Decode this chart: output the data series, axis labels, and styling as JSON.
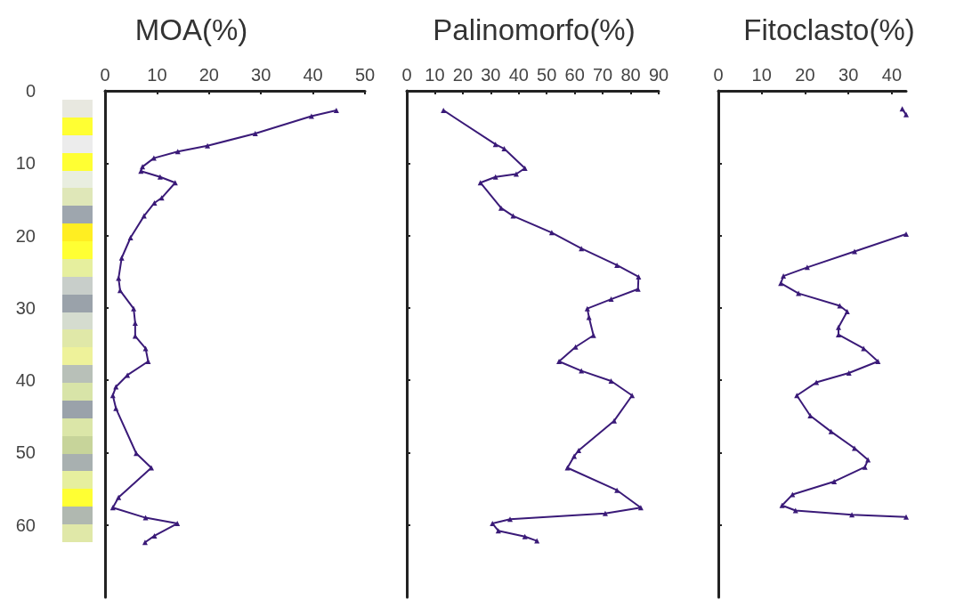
{
  "chart_data": [
    {
      "type": "line",
      "title": "MOA(%)",
      "xlim": [
        0,
        50
      ],
      "xticks": [
        0,
        10,
        20,
        30,
        40,
        50
      ],
      "ylim": [
        70,
        0
      ],
      "yticks": [
        0,
        10,
        20,
        30,
        40,
        50,
        60
      ],
      "grid": false,
      "marker": "triangle",
      "series": [
        {
          "color": "#3a1a78",
          "x": [
            44.5,
            39.7,
            28.9,
            19.7,
            14,
            9.4,
            7.2,
            6.9,
            10.6,
            13.5,
            10.9,
            9.5,
            7.5,
            4.9,
            3.2,
            2.6,
            2.9,
            5.5,
            5.8,
            5.8,
            7.8,
            8.3,
            4.3,
            2.1,
            1.5,
            2.1,
            6,
            8.9,
            2.6,
            1.5,
            7.8,
            13.9,
            9.5,
            7.7
          ],
          "values": [
            2.7,
            3.5,
            5.9,
            7.6,
            8.4,
            9.3,
            10.5,
            11.1,
            11.9,
            12.7,
            14.8,
            15.5,
            17.3,
            20.3,
            23.1,
            25.9,
            27.6,
            30.1,
            32.1,
            33.9,
            35.6,
            37.4,
            39.3,
            40.9,
            42.1,
            43.9,
            50.1,
            52.1,
            56.2,
            57.6,
            59,
            59.8,
            61.5,
            62.4
          ]
        }
      ]
    },
    {
      "type": "line",
      "title": "Palinomorfo(%)",
      "xlim": [
        0,
        90
      ],
      "xticks": [
        0,
        10,
        20,
        30,
        40,
        50,
        60,
        70,
        80,
        90
      ],
      "ylim": [
        70,
        0
      ],
      "yticks": [
        0,
        10,
        20,
        30,
        40,
        50,
        60
      ],
      "tick_labels": "x",
      "grid": false,
      "marker": "triangle",
      "series": [
        {
          "color": "#3a1a78",
          "x": [
            13.1,
            31.7,
            34.8,
            42.2,
            39.1,
            31.7,
            26.3,
            33.7,
            38,
            51.8,
            62.4,
            75.1,
            82.8,
            82.6,
            73,
            64.5,
            65.1,
            66.7,
            60.3,
            54.4,
            62.4,
            73,
            80.5,
            74.1,
            61.4,
            59.8,
            57.4,
            75.1,
            83.6,
            70.9,
            36.9,
            30.6,
            32.7,
            42.2,
            46.5
          ],
          "values": [
            2.7,
            7.4,
            8,
            10.7,
            11.5,
            11.9,
            12.7,
            16.2,
            17.3,
            19.6,
            21.8,
            24.1,
            25.7,
            27.4,
            28.8,
            30.1,
            31.3,
            33.8,
            35.4,
            37.4,
            38.7,
            40.1,
            42.1,
            45.6,
            49.7,
            50.5,
            52.1,
            55.2,
            57.6,
            58.4,
            59.2,
            59.8,
            60.8,
            61.6,
            62.2
          ]
        }
      ]
    },
    {
      "type": "line",
      "title": "Fitoclasto(%)",
      "xlim": [
        0,
        43.3
      ],
      "xticks": [
        0,
        10,
        20,
        30,
        40
      ],
      "ylim": [
        70,
        0
      ],
      "yticks": [
        0,
        10,
        20,
        30,
        40,
        50,
        60
      ],
      "tick_labels": "x",
      "grid": false,
      "marker": "triangle",
      "series": [
        {
          "color": "#3a1a78",
          "x": [
            42.4,
            43.3,
            null,
            43.3,
            31.4,
            20.5,
            15,
            14.4,
            18.5,
            28,
            29.7,
            27.7,
            27.7,
            33.5,
            36.8,
            30.1,
            22.6,
            18.1,
            21.2,
            26,
            31.4,
            34.5,
            33.8,
            26.7,
            17.1,
            14.7,
            17.8,
            30.8,
            43.3
          ],
          "values": [
            2.5,
            3.3,
            null,
            19.8,
            22.2,
            24.4,
            25.6,
            26.6,
            28,
            29.7,
            30.5,
            32.7,
            33.7,
            35.6,
            37.4,
            39,
            40.3,
            42.1,
            44.9,
            47.1,
            49.4,
            51,
            52,
            54,
            55.8,
            57.3,
            58,
            58.6,
            58.9
          ]
        }
      ]
    }
  ]
}
